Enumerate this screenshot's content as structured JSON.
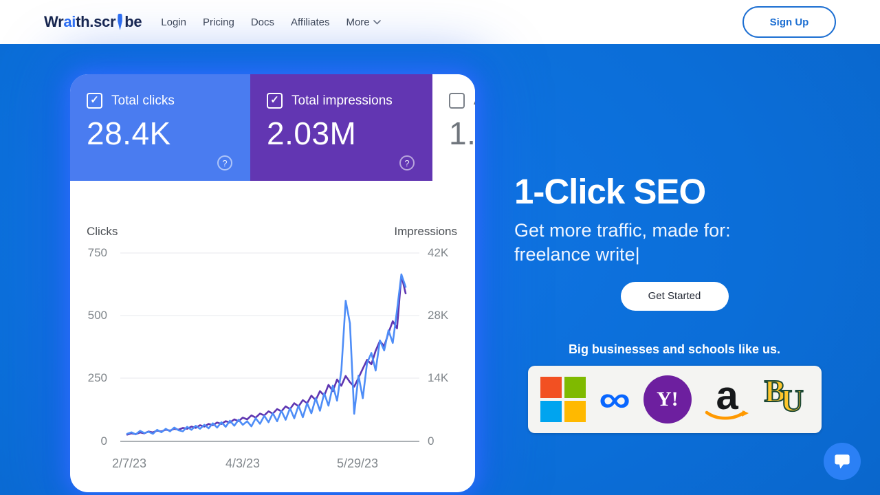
{
  "nav": {
    "logo": {
      "p1": "Wr",
      "p2": "ai",
      "p3": "th.scr",
      "p4": "be"
    },
    "items": [
      {
        "label": "Login"
      },
      {
        "label": "Pricing"
      },
      {
        "label": "Docs"
      },
      {
        "label": "Affiliates"
      },
      {
        "label": "More"
      }
    ],
    "signup": "Sign Up"
  },
  "search_console_card": {
    "check_glyph": "✓",
    "help_glyph": "?",
    "tiles": [
      {
        "label": "Total clicks",
        "value": "28.4K",
        "checked": true,
        "bg": "#4a7cf0"
      },
      {
        "label": "Total impressions",
        "value": "2.03M",
        "checked": true,
        "bg": "#6236b2"
      },
      {
        "label_partial": "A",
        "value_partial": "1.",
        "checked": false,
        "bg": "#ffffff"
      }
    ]
  },
  "chart_data": {
    "type": "line",
    "title": "",
    "left_axis": {
      "label": "Clicks",
      "max": 750,
      "ticks": [
        "750",
        "500",
        "250",
        "0"
      ]
    },
    "right_axis": {
      "label": "Impressions",
      "max": 42,
      "unit": "K",
      "ticks": [
        "42K",
        "28K",
        "14K",
        "0"
      ]
    },
    "x_ticks": [
      "2/7/23",
      "4/3/23",
      "5/29/23"
    ],
    "grid": "horizontal",
    "legend": "none",
    "series": [
      {
        "name": "Clicks",
        "axis": "left",
        "color": "#4e8df7",
        "values": [
          30,
          36,
          28,
          42,
          33,
          38,
          30,
          46,
          36,
          50,
          40,
          55,
          44,
          40,
          58,
          46,
          62,
          50,
          66,
          52,
          72,
          55,
          76,
          58,
          82,
          62,
          86,
          66,
          80,
          60,
          92,
          70,
          102,
          76,
          112,
          80,
          122,
          86,
          132,
          92,
          142,
          96,
          152,
          112,
          172,
          122,
          192,
          142,
          222,
          162,
          282,
          560,
          470,
          110,
          262,
          172,
          312,
          352,
          282,
          402,
          362,
          442,
          392,
          522,
          665,
          615
        ]
      },
      {
        "name": "Impressions",
        "axis": "right",
        "color": "#5e35b1",
        "values": [
          1.5,
          1.8,
          1.6,
          2.0,
          1.8,
          2.2,
          2.0,
          2.4,
          2.2,
          2.6,
          2.4,
          2.8,
          2.6,
          3.0,
          2.8,
          3.3,
          3.0,
          3.6,
          3.3,
          3.9,
          3.6,
          4.2,
          3.9,
          4.5,
          4.2,
          4.9,
          4.5,
          5.3,
          4.9,
          5.8,
          5.3,
          6.2,
          5.8,
          6.7,
          6.2,
          7.2,
          6.7,
          7.8,
          7.2,
          8.5,
          7.8,
          9.2,
          8.5,
          10.2,
          9.2,
          11.2,
          10.2,
          12.6,
          11.2,
          13.8,
          12.4,
          14.6,
          13.2,
          12.2,
          14.2,
          16.2,
          18.2,
          17.2,
          20.2,
          22.4,
          21.2,
          24.2,
          26.8,
          25.2,
          37.0,
          33.0
        ]
      }
    ]
  },
  "hero": {
    "title": "1-Click SEO",
    "subtitle_line1": "Get more traffic, made for:",
    "subtitle_typed": "freelance write",
    "cursor": "|",
    "cta": "Get Started",
    "social_proof": "Big businesses and schools like us.",
    "logos": [
      {
        "name": "microsoft"
      },
      {
        "name": "meta",
        "glyph": "∞"
      },
      {
        "name": "yahoo",
        "glyph": "Y!"
      },
      {
        "name": "amazon",
        "glyph": "a"
      },
      {
        "name": "baylor",
        "glyph_b": "B",
        "glyph_u": "U"
      }
    ]
  },
  "colors": {
    "background": "#0b6fd8",
    "clicks_tile": "#4a7cf0",
    "impressions_tile": "#6236b2",
    "clicks_line": "#4e8df7",
    "impressions_line": "#5e35b1",
    "accent_blue": "#1d6fd2",
    "meta_blue": "#0866ff",
    "yahoo_purple": "#6d1f9f",
    "amazon_orange": "#ff9900",
    "baylor_gold": "#ffc72c",
    "baylor_green": "#1b4734",
    "ms_red": "#f25022",
    "ms_green": "#7fba00",
    "ms_blue": "#00a4ef",
    "ms_yellow": "#ffb900"
  }
}
